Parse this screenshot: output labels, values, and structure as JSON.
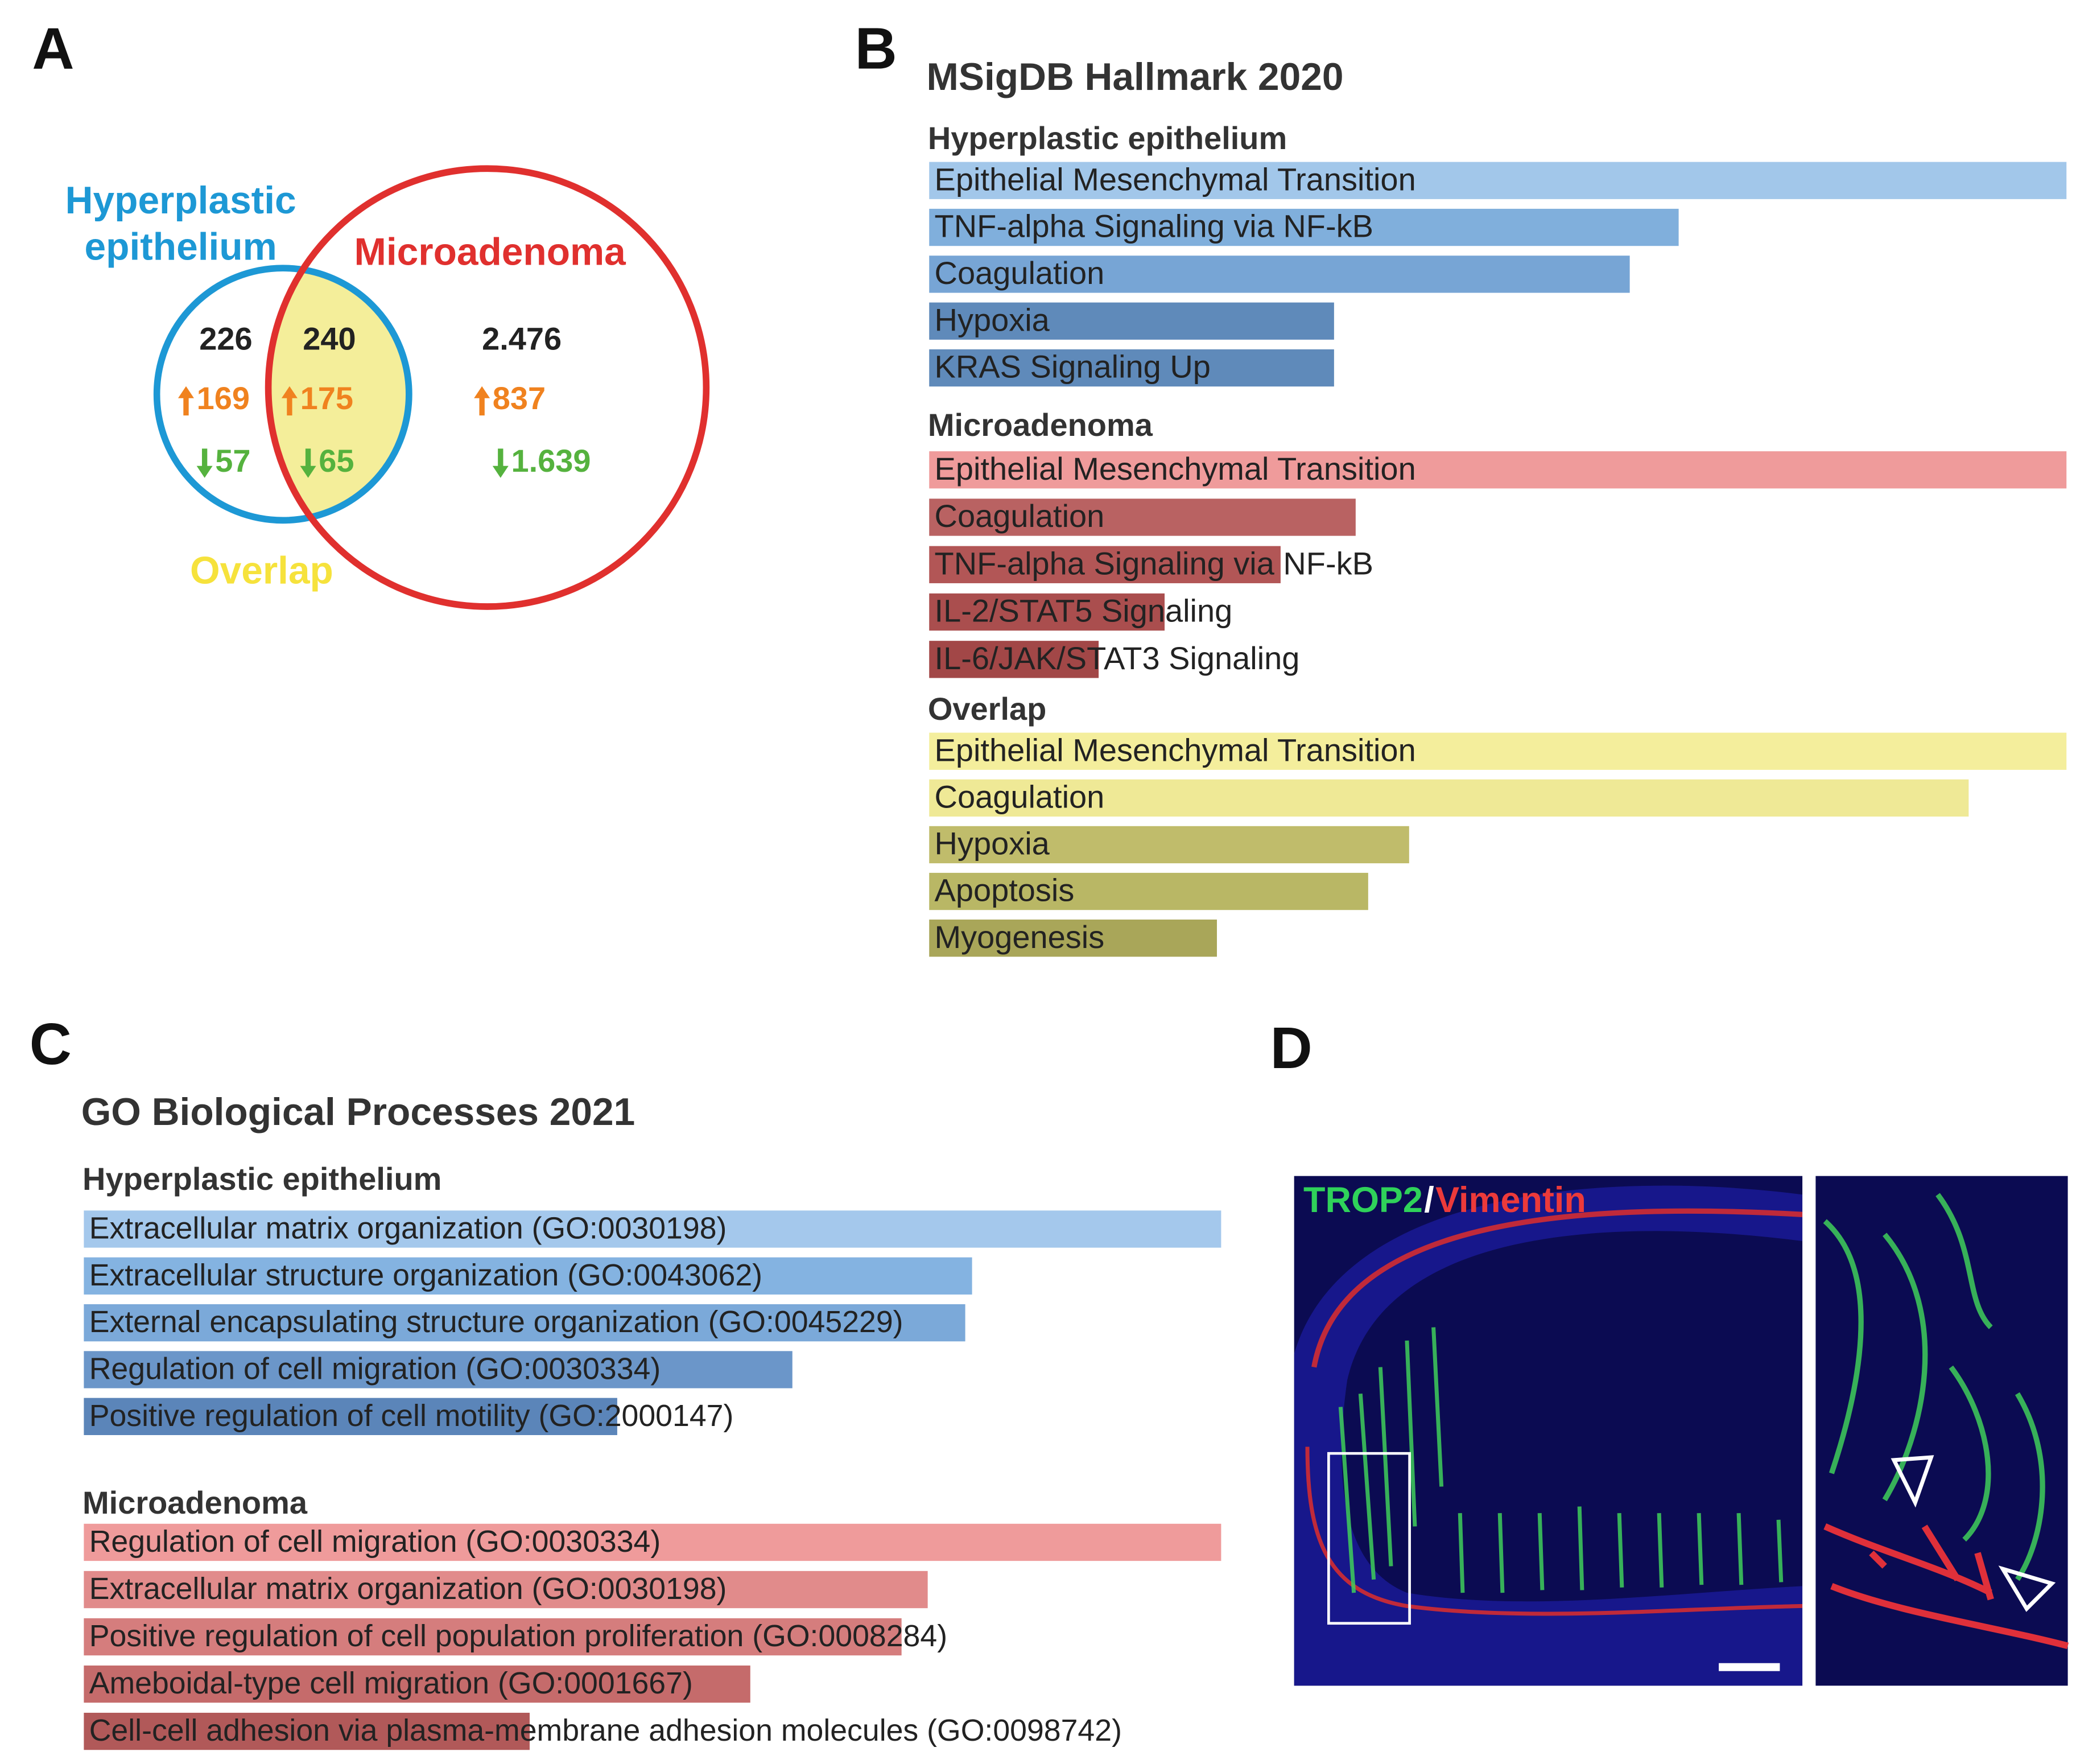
{
  "panel_a": {
    "label": "A",
    "hyperplastic": [
      "Hyperplastic",
      "epithelium"
    ],
    "microadenoma": "Microadenoma",
    "overlap": "Overlap",
    "colors": {
      "hyperplastic": "#1d98d5",
      "microadenoma": "#e0302e",
      "overlap": "#f6e23c",
      "fill": "#f4ee9a",
      "up": "#f0821f",
      "down": "#55b23e",
      "total": "#222222"
    },
    "regions": [
      {
        "total": "226",
        "up": "169",
        "down": "57"
      },
      {
        "total": "240",
        "up": "175",
        "down": "65"
      },
      {
        "total": "2.476",
        "up": "837",
        "down": "1.639"
      }
    ]
  },
  "panel_b": {
    "label": "B",
    "title": "MSigDB Hallmark 2020",
    "groups": [
      {
        "name": "Hyperplastic epithelium",
        "terms": [
          {
            "name": "Epithelial Mesenchymal Transition",
            "value": 100,
            "color": "#a2c7ea"
          },
          {
            "name": "TNF-alpha Signaling via NF-kB",
            "value": 65.9,
            "color": "#80afdc"
          },
          {
            "name": "Coagulation",
            "value": 61.6,
            "color": "#77a5d5"
          },
          {
            "name": "Hypoxia",
            "value": 35.6,
            "color": "#5f8aba"
          },
          {
            "name": "KRAS Signaling Up",
            "value": 35.6,
            "color": "#5f8aba"
          }
        ]
      },
      {
        "name": "Microadenoma",
        "terms": [
          {
            "name": "Epithelial Mesenchymal Transition",
            "value": 100,
            "color": "#ef9b9b"
          },
          {
            "name": "Coagulation",
            "value": 37.5,
            "color": "#b96262"
          },
          {
            "name": "TNF-alpha Signaling via NF-kB",
            "value": 30.9,
            "color": "#b25656"
          },
          {
            "name": "IL-2/STAT5 Signaling",
            "value": 20.7,
            "color": "#aa4e4e"
          },
          {
            "name": "IL-6/JAK/STAT3 Signaling",
            "value": 14.9,
            "color": "#a24747"
          }
        ]
      },
      {
        "name": "Overlap",
        "terms": [
          {
            "name": "Epithelial Mesenchymal Transition",
            "value": 100,
            "color": "#f4ee9c"
          },
          {
            "name": "Coagulation",
            "value": 91.4,
            "color": "#efe996"
          },
          {
            "name": "Hypoxia",
            "value": 42.2,
            "color": "#c0bc6b"
          },
          {
            "name": "Apoptosis",
            "value": 38.6,
            "color": "#b9b765"
          },
          {
            "name": "Myogenesis",
            "value": 25.3,
            "color": "#a9a659"
          }
        ]
      }
    ]
  },
  "panel_c": {
    "label": "C",
    "title": "GO Biological Processes 2021",
    "groups": [
      {
        "name": "Hyperplastic epithelium",
        "terms": [
          {
            "name": "Extracellular matrix organization (GO:0030198)",
            "value": 100,
            "color": "#a4c8ec"
          },
          {
            "name": "Extracellular structure organization (GO:0043062)",
            "value": 78.1,
            "color": "#84b3e1"
          },
          {
            "name": "External encapsulating structure organization (GO:0045229)",
            "value": 77.5,
            "color": "#7ba9d9"
          },
          {
            "name": "Regulation of cell migration (GO:0030334)",
            "value": 62.3,
            "color": "#6b96c9"
          },
          {
            "name": "Positive regulation of cell motility (GO:2000147)",
            "value": 46.9,
            "color": "#5b85b9"
          }
        ]
      },
      {
        "name": "Microadenoma",
        "terms": [
          {
            "name": "Regulation of cell migration (GO:0030334)",
            "value": 100,
            "color": "#ef9b9b"
          },
          {
            "name": "Extracellular matrix organization (GO:0030198)",
            "value": 74.2,
            "color": "#e18b8b"
          },
          {
            "name": "Positive regulation of cell population proliferation (GO:0008284)",
            "value": 71.9,
            "color": "#d57d7d"
          },
          {
            "name": "Ameboidal-type cell migration (GO:0001667)",
            "value": 58.6,
            "color": "#c56b6b"
          },
          {
            "name": "Cell-cell adhesion via plasma-membrane adhesion molecules (GO:0098742)",
            "value": 39.2,
            "color": "#b15959"
          }
        ]
      }
    ]
  },
  "panel_d": {
    "label": "D",
    "stain_1": "TROP2",
    "separator": "/",
    "stain_2": "Vimentin"
  }
}
